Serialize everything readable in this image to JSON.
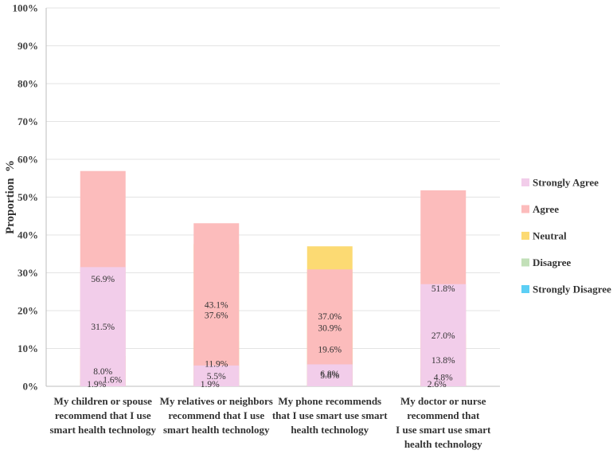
{
  "chart_data": {
    "type": "bar",
    "stacked": true,
    "ylabel": "Proportion  %",
    "ylim": [
      0,
      100
    ],
    "yticks": [
      "0%",
      "10%",
      "20%",
      "30%",
      "40%",
      "50%",
      "60%",
      "70%",
      "80%",
      "90%",
      "100%"
    ],
    "categories": [
      [
        "My children or spouse",
        "recommend that I use",
        "smart health technology"
      ],
      [
        "My relatives or neighbors",
        "recommend that I use",
        "smart health technology"
      ],
      [
        "My phone recommends",
        "that I use smart use smart",
        "health technology"
      ],
      [
        "My doctor or nurse",
        "recommend that",
        "I use smart use smart",
        "health technology"
      ]
    ],
    "series": [
      {
        "name": "Strongly Disagree",
        "color": "#5ccff5",
        "values": [
          1.9,
          1.9,
          6.8,
          2.6
        ],
        "labels": [
          "1.9%",
          "1.9%",
          "6.8%",
          "2.6%"
        ]
      },
      {
        "name": "Disagree",
        "color": "#c2e0b8",
        "values": [
          1.6,
          11.9,
          19.6,
          4.8
        ],
        "labels": [
          "1.6%",
          "11.9%",
          "19.6%",
          "4.8%"
        ]
      },
      {
        "name": "Neutral",
        "color": "#fcda73",
        "values": [
          8.0,
          37.6,
          37.0,
          13.8
        ],
        "labels": [
          "8.0%",
          "37.6%",
          "37.0%",
          "13.8%"
        ]
      },
      {
        "name": "Agree",
        "color": "#fcbcbc",
        "values": [
          56.9,
          43.1,
          30.9,
          51.8
        ],
        "labels": [
          "56.9%",
          "43.1%",
          "30.9%",
          "51.8%"
        ]
      },
      {
        "name": "Strongly Agree",
        "color": "#f2cdea",
        "values": [
          31.5,
          5.5,
          5.8,
          27.0
        ],
        "labels": [
          "31.5%",
          "5.5%",
          "5.8%",
          "27.0%"
        ]
      }
    ],
    "legend": "right"
  }
}
